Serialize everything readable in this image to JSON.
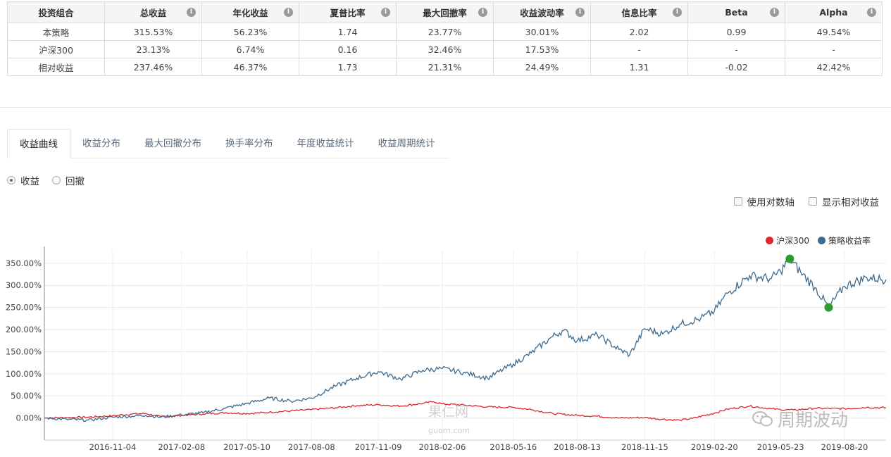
{
  "table": {
    "headers": [
      "投资组合",
      "总收益",
      "年化收益",
      "夏普比率",
      "最大回撤率",
      "收益波动率",
      "信息比率",
      "Beta",
      "Alpha"
    ],
    "info_glyph": "i",
    "rows": [
      [
        "本策略",
        "315.53%",
        "56.23%",
        "1.74",
        "23.77%",
        "30.01%",
        "2.02",
        "0.99",
        "49.54%"
      ],
      [
        "沪深300",
        "23.13%",
        "6.74%",
        "0.16",
        "32.46%",
        "17.53%",
        "-",
        "-",
        "-"
      ],
      [
        "相对收益",
        "237.46%",
        "46.37%",
        "1.73",
        "21.31%",
        "24.49%",
        "1.31",
        "-0.02",
        "42.42%"
      ]
    ]
  },
  "tabs": [
    "收益曲线",
    "收益分布",
    "最大回撤分布",
    "换手率分布",
    "年度收益统计",
    "收益周期统计"
  ],
  "active_tab": 0,
  "radio": {
    "returns": "收益",
    "drawdown": "回撤",
    "selected": "returns"
  },
  "checkboxes": {
    "log_axis": "使用对数轴",
    "relative": "显示相对收益"
  },
  "watermarks": {
    "brand": "周期波动",
    "site": "果仁网",
    "url": "guorn.com"
  },
  "chart_data": {
    "type": "line",
    "ylim": [
      -50,
      380
    ],
    "y_ticks": [
      "0.00%",
      "50.00%",
      "100.00%",
      "150.00%",
      "200.00%",
      "250.00%",
      "300.00%",
      "350.00%"
    ],
    "y_tick_values": [
      0,
      50,
      100,
      150,
      200,
      250,
      300,
      350
    ],
    "x_ticks": [
      "2016-11-04",
      "2017-02-08",
      "2017-05-10",
      "2017-08-08",
      "2017-11-09",
      "2018-02-06",
      "2018-05-16",
      "2018-08-13",
      "2018-11-15",
      "2019-02-20",
      "2019-05-23",
      "2019-08-20"
    ],
    "x_range": [
      "2016-08-01",
      "2019-10-17"
    ],
    "series": [
      {
        "name": "沪深300",
        "color": "#e0262f",
        "points": [
          [
            "2016-08-01",
            0
          ],
          [
            "2016-09-01",
            1
          ],
          [
            "2016-10-01",
            2
          ],
          [
            "2016-11-04",
            5
          ],
          [
            "2016-12-01",
            9
          ],
          [
            "2016-12-20",
            10
          ],
          [
            "2017-01-10",
            3
          ],
          [
            "2017-02-08",
            6
          ],
          [
            "2017-03-10",
            9
          ],
          [
            "2017-04-10",
            12
          ],
          [
            "2017-05-10",
            10
          ],
          [
            "2017-06-10",
            13
          ],
          [
            "2017-07-10",
            16
          ],
          [
            "2017-08-08",
            19
          ],
          [
            "2017-09-10",
            23
          ],
          [
            "2017-10-10",
            28
          ],
          [
            "2017-11-09",
            30
          ],
          [
            "2017-12-10",
            27
          ],
          [
            "2018-01-10",
            33
          ],
          [
            "2018-01-25",
            37
          ],
          [
            "2018-02-06",
            32
          ],
          [
            "2018-03-10",
            29
          ],
          [
            "2018-04-10",
            25
          ],
          [
            "2018-05-16",
            24
          ],
          [
            "2018-06-10",
            19
          ],
          [
            "2018-07-10",
            10
          ],
          [
            "2018-08-13",
            6
          ],
          [
            "2018-09-10",
            4
          ],
          [
            "2018-10-10",
            0
          ],
          [
            "2018-11-15",
            1
          ],
          [
            "2018-12-10",
            -3
          ],
          [
            "2019-01-03",
            -5
          ],
          [
            "2019-01-20",
            -1
          ],
          [
            "2019-02-20",
            11
          ],
          [
            "2019-03-10",
            20
          ],
          [
            "2019-04-10",
            27
          ],
          [
            "2019-05-10",
            21
          ],
          [
            "2019-05-23",
            19
          ],
          [
            "2019-06-10",
            18
          ],
          [
            "2019-07-10",
            22
          ],
          [
            "2019-08-20",
            21
          ],
          [
            "2019-09-20",
            24
          ],
          [
            "2019-10-17",
            23
          ]
        ]
      },
      {
        "name": "策略收益率",
        "color": "#3d6b8f",
        "points": [
          [
            "2016-08-01",
            0
          ],
          [
            "2016-09-01",
            -3
          ],
          [
            "2016-10-01",
            -5
          ],
          [
            "2016-11-04",
            2
          ],
          [
            "2016-12-01",
            4
          ],
          [
            "2016-12-20",
            6
          ],
          [
            "2017-01-10",
            2
          ],
          [
            "2017-02-08",
            7
          ],
          [
            "2017-03-10",
            12
          ],
          [
            "2017-04-10",
            22
          ],
          [
            "2017-05-10",
            33
          ],
          [
            "2017-06-10",
            45
          ],
          [
            "2017-07-10",
            38
          ],
          [
            "2017-08-08",
            45
          ],
          [
            "2017-09-10",
            72
          ],
          [
            "2017-10-10",
            90
          ],
          [
            "2017-11-09",
            105
          ],
          [
            "2017-12-10",
            88
          ],
          [
            "2018-01-10",
            108
          ],
          [
            "2018-02-06",
            112
          ],
          [
            "2018-03-10",
            102
          ],
          [
            "2018-04-10",
            90
          ],
          [
            "2018-05-16",
            122
          ],
          [
            "2018-06-10",
            147
          ],
          [
            "2018-07-10",
            185
          ],
          [
            "2018-07-25",
            198
          ],
          [
            "2018-08-13",
            175
          ],
          [
            "2018-09-10",
            188
          ],
          [
            "2018-10-10",
            155
          ],
          [
            "2018-10-25",
            143
          ],
          [
            "2018-11-15",
            202
          ],
          [
            "2018-12-10",
            190
          ],
          [
            "2019-01-03",
            212
          ],
          [
            "2019-02-01",
            225
          ],
          [
            "2019-02-20",
            242
          ],
          [
            "2019-03-10",
            282
          ],
          [
            "2019-04-10",
            322
          ],
          [
            "2019-05-10",
            315
          ],
          [
            "2019-05-23",
            332
          ],
          [
            "2019-06-05",
            360
          ],
          [
            "2019-06-20",
            330
          ],
          [
            "2019-07-10",
            295
          ],
          [
            "2019-07-29",
            250
          ],
          [
            "2019-08-20",
            298
          ],
          [
            "2019-09-20",
            318
          ],
          [
            "2019-10-17",
            313
          ]
        ],
        "markers": [
          [
            "2019-06-05",
            360
          ],
          [
            "2019-07-29",
            250
          ]
        ],
        "marker_color": "#2e9b2e"
      }
    ]
  }
}
